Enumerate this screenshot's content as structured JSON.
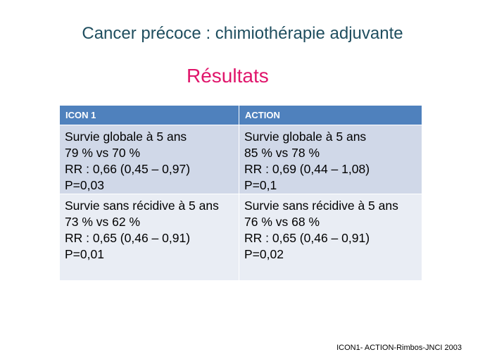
{
  "slide": {
    "title": "Cancer précoce : chimiothérapie adjuvante",
    "subtitle": "Résultats",
    "table": {
      "headers": [
        "ICON 1",
        "ACTION"
      ],
      "rows": [
        [
          [
            "Survie globale à 5 ans",
            "79 % vs 70 %",
            "RR : 0,66 (0,45 – 0,97)",
            "P=0,03"
          ],
          [
            "Survie globale à 5 ans",
            "85 % vs 78 %",
            "RR : 0,69 (0,44 – 1,08)",
            "P=0,1"
          ]
        ],
        [
          [
            "Survie sans récidive à 5 ans",
            "73 % vs 62 %",
            "RR : 0,65 (0,46 – 0,91)",
            "P=0,01"
          ],
          [
            "Survie sans récidive à 5 ans",
            "76 % vs 68 %",
            "RR : 0,65 (0,46 – 0,91)",
            "P=0,02"
          ]
        ]
      ]
    },
    "source": "ICON1- ACTION-Rimbos-JNCI 2003"
  },
  "colors": {
    "title": "#1f4e5f",
    "subtitle": "#e0156b",
    "header_bg": "#4f81bd",
    "row_a_bg": "#d0d8e8",
    "row_b_bg": "#e9edf4"
  }
}
